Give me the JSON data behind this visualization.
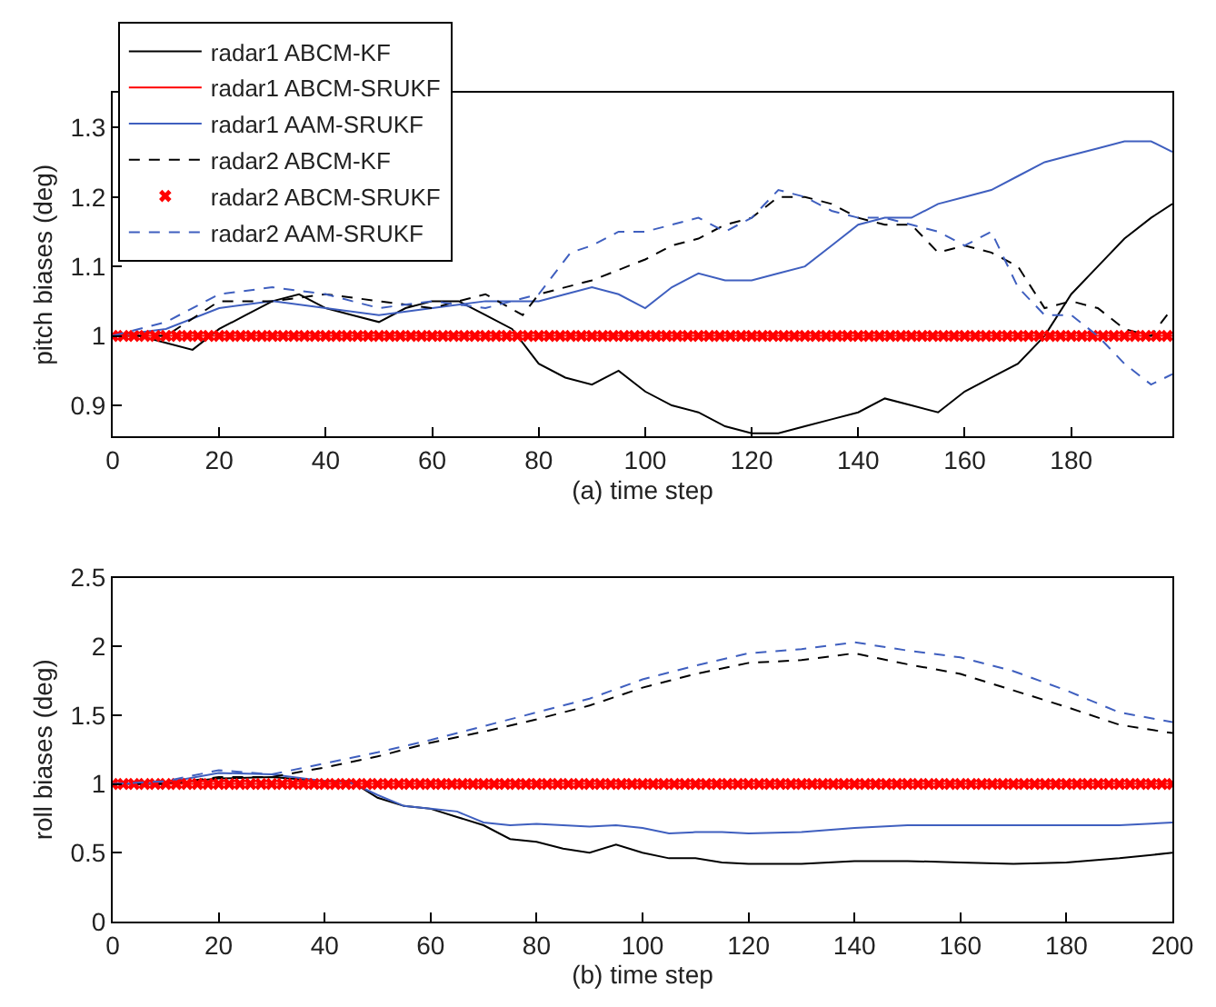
{
  "chart_data": [
    {
      "type": "line",
      "xlabel": "(a) time step",
      "ylabel": "pitch biases (deg)",
      "xlim": [
        0,
        199
      ],
      "xticks": [
        0,
        20,
        40,
        60,
        80,
        100,
        120,
        140,
        160,
        180
      ],
      "ylim": [
        0.855,
        1.35
      ],
      "yticks": [
        0.9,
        1,
        1.1,
        1.2,
        1.3
      ],
      "grid": false,
      "legend": "top left",
      "series": [
        {
          "name": "radar1 ABCM-KF",
          "color": "#000000",
          "line_style": "solid",
          "marker": "none",
          "x": [
            0,
            5,
            10,
            15,
            20,
            25,
            30,
            35,
            40,
            45,
            50,
            55,
            60,
            65,
            70,
            75,
            80,
            85,
            90,
            95,
            100,
            105,
            110,
            115,
            120,
            125,
            130,
            135,
            140,
            145,
            150,
            155,
            160,
            165,
            170,
            175,
            180,
            185,
            190,
            195,
            199
          ],
          "values": [
            1.0,
            1.0,
            0.99,
            0.98,
            1.01,
            1.03,
            1.05,
            1.06,
            1.04,
            1.03,
            1.02,
            1.04,
            1.05,
            1.05,
            1.03,
            1.01,
            0.96,
            0.94,
            0.93,
            0.95,
            0.92,
            0.9,
            0.89,
            0.87,
            0.86,
            0.86,
            0.87,
            0.88,
            0.89,
            0.91,
            0.9,
            0.89,
            0.92,
            0.94,
            0.96,
            1.0,
            1.06,
            1.1,
            1.14,
            1.17,
            1.19
          ]
        },
        {
          "name": "radar1 ABCM-SRUKF",
          "color": "#ff0000",
          "line_style": "solid",
          "marker": "none",
          "x": [
            0,
            199
          ],
          "values": [
            1,
            1
          ]
        },
        {
          "name": "radar1 AAM-SRUKF",
          "color": "#3f5fbf",
          "line_style": "solid",
          "marker": "none",
          "x": [
            0,
            10,
            20,
            30,
            40,
            50,
            60,
            70,
            80,
            85,
            90,
            95,
            100,
            105,
            110,
            115,
            120,
            125,
            130,
            135,
            140,
            145,
            150,
            155,
            160,
            165,
            170,
            175,
            180,
            185,
            190,
            195,
            199
          ],
          "values": [
            1.0,
            1.01,
            1.04,
            1.05,
            1.04,
            1.03,
            1.04,
            1.05,
            1.05,
            1.06,
            1.07,
            1.06,
            1.04,
            1.07,
            1.09,
            1.08,
            1.08,
            1.09,
            1.1,
            1.13,
            1.16,
            1.17,
            1.17,
            1.19,
            1.2,
            1.21,
            1.23,
            1.25,
            1.26,
            1.27,
            1.28,
            1.28,
            1.265
          ]
        },
        {
          "name": "radar2 ABCM-KF",
          "color": "#000000",
          "line_style": "dashed",
          "marker": "none",
          "x": [
            0,
            10,
            20,
            30,
            40,
            50,
            60,
            70,
            77,
            80,
            90,
            100,
            105,
            110,
            115,
            120,
            125,
            130,
            135,
            140,
            145,
            150,
            155,
            160,
            165,
            170,
            175,
            180,
            185,
            190,
            195,
            199
          ],
          "values": [
            1.0,
            1.0,
            1.05,
            1.05,
            1.06,
            1.05,
            1.04,
            1.06,
            1.03,
            1.06,
            1.08,
            1.11,
            1.13,
            1.14,
            1.16,
            1.17,
            1.2,
            1.2,
            1.19,
            1.17,
            1.16,
            1.16,
            1.12,
            1.13,
            1.12,
            1.1,
            1.04,
            1.05,
            1.04,
            1.01,
            1.0,
            1.04
          ]
        },
        {
          "name": "radar2 ABCM-SRUKF",
          "color": "#ff0000",
          "marker": "cross",
          "x": [
            0,
            2,
            4,
            6,
            8,
            10,
            12,
            14,
            16,
            18,
            20,
            22,
            24,
            26,
            28,
            30,
            32,
            34,
            36,
            38,
            40,
            42,
            44,
            46,
            48,
            50,
            52,
            54,
            56,
            58,
            60,
            62,
            64,
            66,
            68,
            70,
            72,
            74,
            76,
            78,
            80,
            82,
            84,
            86,
            88,
            90,
            92,
            94,
            96,
            98,
            100,
            102,
            104,
            106,
            108,
            110,
            112,
            114,
            116,
            118,
            120,
            122,
            124,
            126,
            128,
            130,
            132,
            134,
            136,
            138,
            140,
            142,
            144,
            146,
            148,
            150,
            152,
            154,
            156,
            158,
            160,
            162,
            164,
            166,
            168,
            170,
            172,
            174,
            176,
            178,
            180,
            182,
            184,
            186,
            188,
            190,
            192,
            194,
            196,
            198
          ],
          "values": [
            1,
            1,
            1,
            1,
            1,
            1,
            1,
            1,
            1,
            1,
            1,
            1,
            1,
            1,
            1,
            1,
            1,
            1,
            1,
            1,
            1,
            1,
            1,
            1,
            1,
            1,
            1,
            1,
            1,
            1,
            1,
            1,
            1,
            1,
            1,
            1,
            1,
            1,
            1,
            1,
            1,
            1,
            1,
            1,
            1,
            1,
            1,
            1,
            1,
            1,
            1,
            1,
            1,
            1,
            1,
            1,
            1,
            1,
            1,
            1,
            1,
            1,
            1,
            1,
            1,
            1,
            1,
            1,
            1,
            1,
            1,
            1,
            1,
            1,
            1,
            1,
            1,
            1,
            1,
            1,
            1,
            1,
            1,
            1,
            1,
            1,
            1,
            1,
            1,
            1,
            1,
            1,
            1,
            1,
            1,
            1,
            1,
            1,
            1,
            1
          ],
          "type": "scatter"
        },
        {
          "name": "radar2 AAM-SRUKF",
          "color": "#3f5fbf",
          "line_style": "dashed",
          "marker": "none",
          "x": [
            0,
            10,
            20,
            30,
            40,
            50,
            60,
            70,
            80,
            86,
            90,
            95,
            100,
            105,
            110,
            115,
            120,
            125,
            130,
            135,
            140,
            145,
            150,
            155,
            160,
            165,
            170,
            175,
            180,
            185,
            190,
            195,
            199
          ],
          "values": [
            1.0,
            1.02,
            1.06,
            1.07,
            1.06,
            1.04,
            1.05,
            1.04,
            1.06,
            1.12,
            1.13,
            1.15,
            1.15,
            1.16,
            1.17,
            1.15,
            1.17,
            1.21,
            1.2,
            1.18,
            1.17,
            1.17,
            1.16,
            1.15,
            1.13,
            1.15,
            1.07,
            1.03,
            1.03,
            1.0,
            0.96,
            0.93,
            0.945
          ]
        }
      ]
    },
    {
      "type": "line",
      "xlabel": "(b) time step",
      "ylabel": "roll biases (deg)",
      "xlim": [
        0,
        200
      ],
      "xticks": [
        0,
        20,
        40,
        60,
        80,
        100,
        120,
        140,
        160,
        180,
        200
      ],
      "ylim": [
        0,
        2.5
      ],
      "yticks": [
        0,
        0.5,
        1,
        1.5,
        2,
        2.5
      ],
      "grid": false,
      "legend": false,
      "series": [
        {
          "color": "#000000",
          "line_style": "solid",
          "marker": "none",
          "x": [
            0,
            10,
            20,
            30,
            40,
            45,
            50,
            55,
            60,
            65,
            70,
            75,
            80,
            85,
            90,
            95,
            100,
            105,
            110,
            115,
            120,
            130,
            140,
            150,
            160,
            170,
            180,
            190,
            200
          ],
          "values": [
            1.0,
            1.0,
            1.04,
            1.05,
            1.02,
            1.02,
            0.9,
            0.84,
            0.82,
            0.76,
            0.7,
            0.6,
            0.58,
            0.53,
            0.5,
            0.56,
            0.5,
            0.46,
            0.46,
            0.43,
            0.42,
            0.42,
            0.44,
            0.44,
            0.43,
            0.42,
            0.43,
            0.46,
            0.5
          ]
        },
        {
          "color": "#ff0000",
          "line_style": "solid",
          "marker": "none",
          "x": [
            0,
            200
          ],
          "values": [
            1,
            1
          ]
        },
        {
          "color": "#3f5fbf",
          "line_style": "solid",
          "marker": "none",
          "x": [
            0,
            10,
            20,
            30,
            40,
            45,
            50,
            55,
            60,
            65,
            70,
            75,
            80,
            85,
            90,
            95,
            100,
            105,
            110,
            115,
            120,
            130,
            140,
            150,
            160,
            170,
            180,
            190,
            200
          ],
          "values": [
            1.0,
            1.01,
            1.08,
            1.07,
            1.02,
            1.01,
            0.92,
            0.84,
            0.82,
            0.8,
            0.72,
            0.7,
            0.71,
            0.7,
            0.69,
            0.7,
            0.68,
            0.64,
            0.65,
            0.65,
            0.64,
            0.65,
            0.68,
            0.7,
            0.7,
            0.7,
            0.7,
            0.7,
            0.72
          ]
        },
        {
          "color": "#000000",
          "line_style": "dashed",
          "marker": "none",
          "x": [
            0,
            10,
            20,
            30,
            40,
            50,
            60,
            70,
            80,
            90,
            100,
            110,
            120,
            130,
            140,
            150,
            160,
            170,
            180,
            190,
            200
          ],
          "values": [
            1.0,
            1.0,
            1.05,
            1.05,
            1.12,
            1.2,
            1.3,
            1.38,
            1.47,
            1.57,
            1.7,
            1.8,
            1.88,
            1.9,
            1.95,
            1.87,
            1.8,
            1.68,
            1.56,
            1.43,
            1.37
          ]
        },
        {
          "color": "#ff0000",
          "marker": "cross",
          "type": "scatter",
          "x": [
            0,
            2,
            4,
            6,
            8,
            10,
            12,
            14,
            16,
            18,
            20,
            22,
            24,
            26,
            28,
            30,
            32,
            34,
            36,
            38,
            40,
            42,
            44,
            46,
            48,
            50,
            52,
            54,
            56,
            58,
            60,
            62,
            64,
            66,
            68,
            70,
            72,
            74,
            76,
            78,
            80,
            82,
            84,
            86,
            88,
            90,
            92,
            94,
            96,
            98,
            100,
            102,
            104,
            106,
            108,
            110,
            112,
            114,
            116,
            118,
            120,
            122,
            124,
            126,
            128,
            130,
            132,
            134,
            136,
            138,
            140,
            142,
            144,
            146,
            148,
            150,
            152,
            154,
            156,
            158,
            160,
            162,
            164,
            166,
            168,
            170,
            172,
            174,
            176,
            178,
            180,
            182,
            184,
            186,
            188,
            190,
            192,
            194,
            196,
            198,
            200
          ],
          "values": [
            1,
            1,
            1,
            1,
            1,
            1,
            1,
            1,
            1,
            1,
            1,
            1,
            1,
            1,
            1,
            1,
            1,
            1,
            1,
            1,
            1,
            1,
            1,
            1,
            1,
            1,
            1,
            1,
            1,
            1,
            1,
            1,
            1,
            1,
            1,
            1,
            1,
            1,
            1,
            1,
            1,
            1,
            1,
            1,
            1,
            1,
            1,
            1,
            1,
            1,
            1,
            1,
            1,
            1,
            1,
            1,
            1,
            1,
            1,
            1,
            1,
            1,
            1,
            1,
            1,
            1,
            1,
            1,
            1,
            1,
            1,
            1,
            1,
            1,
            1,
            1,
            1,
            1,
            1,
            1,
            1,
            1,
            1,
            1,
            1,
            1,
            1,
            1,
            1,
            1,
            1,
            1,
            1,
            1,
            1,
            1,
            1,
            1,
            1,
            1,
            1
          ]
        },
        {
          "color": "#3f5fbf",
          "line_style": "dashed",
          "marker": "none",
          "x": [
            0,
            10,
            20,
            30,
            40,
            50,
            60,
            70,
            80,
            90,
            100,
            110,
            120,
            130,
            140,
            150,
            160,
            170,
            180,
            190,
            200
          ],
          "values": [
            1.0,
            1.02,
            1.1,
            1.07,
            1.15,
            1.23,
            1.32,
            1.42,
            1.52,
            1.62,
            1.76,
            1.86,
            1.95,
            1.98,
            2.03,
            1.97,
            1.92,
            1.82,
            1.68,
            1.52,
            1.45
          ]
        }
      ]
    }
  ]
}
